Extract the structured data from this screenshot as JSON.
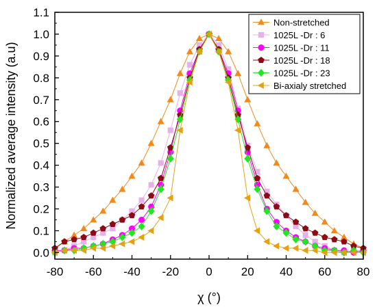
{
  "chart_data": {
    "type": "line",
    "xlabel": "χ (°)",
    "ylabel": "Normalized average intensity (a.u)",
    "xlim": [
      -80,
      80
    ],
    "ylim": [
      -0.03,
      1.1
    ],
    "xticks": [
      -80,
      -60,
      -40,
      -20,
      0,
      20,
      40,
      60,
      80
    ],
    "xtick_labels": [
      "-80",
      "-60",
      "-40",
      "-20",
      "0",
      "20",
      "40",
      "60",
      "80"
    ],
    "yticks": [
      0.0,
      0.1,
      0.2,
      0.3,
      0.4,
      0.5,
      0.6,
      0.7,
      0.8,
      0.9,
      1.0,
      1.1
    ],
    "ytick_labels": [
      "0.0",
      "0.1",
      "0.2",
      "0.3",
      "0.4",
      "0.5",
      "0.6",
      "0.7",
      "0.8",
      "0.9",
      "1.0",
      "1.1"
    ],
    "legend_position": "top-right",
    "grid": false,
    "x": [
      -80,
      -75,
      -70,
      -65,
      -60,
      -55,
      -50,
      -45,
      -40,
      -35,
      -30,
      -25,
      -20,
      -15,
      -10,
      -5,
      0,
      5,
      10,
      15,
      20,
      25,
      30,
      35,
      40,
      45,
      50,
      55,
      60,
      65,
      70,
      75,
      80
    ],
    "series": [
      {
        "name": "Non-stretched",
        "color": "#f08a1c",
        "marker": "triangle-up",
        "values": [
          0.02,
          0.05,
          0.08,
          0.11,
          0.15,
          0.19,
          0.24,
          0.29,
          0.35,
          0.41,
          0.5,
          0.6,
          0.7,
          0.82,
          0.92,
          0.98,
          1.0,
          0.98,
          0.92,
          0.82,
          0.7,
          0.59,
          0.49,
          0.41,
          0.35,
          0.29,
          0.23,
          0.18,
          0.14,
          0.1,
          0.07,
          0.04,
          0.02
        ]
      },
      {
        "name": "1025L -Dr : 6",
        "color": "#e6b0ea",
        "marker": "square",
        "values": [
          0.0,
          0.01,
          0.03,
          0.05,
          0.07,
          0.09,
          0.11,
          0.15,
          0.19,
          0.24,
          0.31,
          0.41,
          0.56,
          0.73,
          0.86,
          0.95,
          1.0,
          0.95,
          0.84,
          0.66,
          0.49,
          0.37,
          0.28,
          0.22,
          0.17,
          0.12,
          0.08,
          0.05,
          0.03,
          0.01,
          0.0,
          0.01,
          0.01
        ]
      },
      {
        "name": "1025L -Dr : 11",
        "color": "#ff00ff",
        "marker": "circle",
        "values": [
          0.01,
          0.01,
          0.02,
          0.02,
          0.03,
          0.04,
          0.06,
          0.08,
          0.11,
          0.15,
          0.21,
          0.31,
          0.46,
          0.65,
          0.82,
          0.93,
          1.0,
          0.93,
          0.82,
          0.65,
          0.46,
          0.31,
          0.2,
          0.14,
          0.1,
          0.07,
          0.05,
          0.03,
          0.02,
          0.01,
          0.01,
          0.0,
          0.01
        ]
      },
      {
        "name": "1025L -Dr : 18",
        "color": "#8b0a14",
        "marker": "pentagon",
        "values": [
          0.02,
          0.05,
          0.06,
          0.07,
          0.09,
          0.11,
          0.13,
          0.15,
          0.17,
          0.21,
          0.26,
          0.34,
          0.48,
          0.63,
          0.8,
          0.93,
          1.0,
          0.93,
          0.8,
          0.63,
          0.48,
          0.34,
          0.26,
          0.21,
          0.17,
          0.14,
          0.11,
          0.09,
          0.07,
          0.06,
          0.05,
          0.03,
          0.02
        ]
      },
      {
        "name": "1025L -Dr : 23",
        "color": "#22e622",
        "marker": "diamond",
        "values": [
          0.0,
          0.01,
          0.01,
          0.02,
          0.03,
          0.04,
          0.05,
          0.07,
          0.09,
          0.12,
          0.19,
          0.29,
          0.43,
          0.61,
          0.79,
          0.92,
          1.0,
          0.92,
          0.79,
          0.61,
          0.43,
          0.29,
          0.19,
          0.12,
          0.09,
          0.06,
          0.05,
          0.03,
          0.01,
          0.01,
          0.0,
          0.01,
          0.0
        ]
      },
      {
        "name": "Bi-axialy stretched",
        "color": "#e3a212",
        "marker": "triangle-left",
        "values": [
          0.0,
          0.01,
          0.01,
          0.01,
          0.02,
          0.02,
          0.03,
          0.04,
          0.05,
          0.07,
          0.1,
          0.16,
          0.25,
          0.56,
          0.78,
          0.92,
          1.0,
          0.92,
          0.78,
          0.56,
          0.25,
          0.1,
          0.05,
          0.03,
          0.02,
          0.02,
          0.01,
          0.01,
          0.0,
          0.0,
          0.0,
          0.0,
          0.0
        ]
      }
    ]
  }
}
